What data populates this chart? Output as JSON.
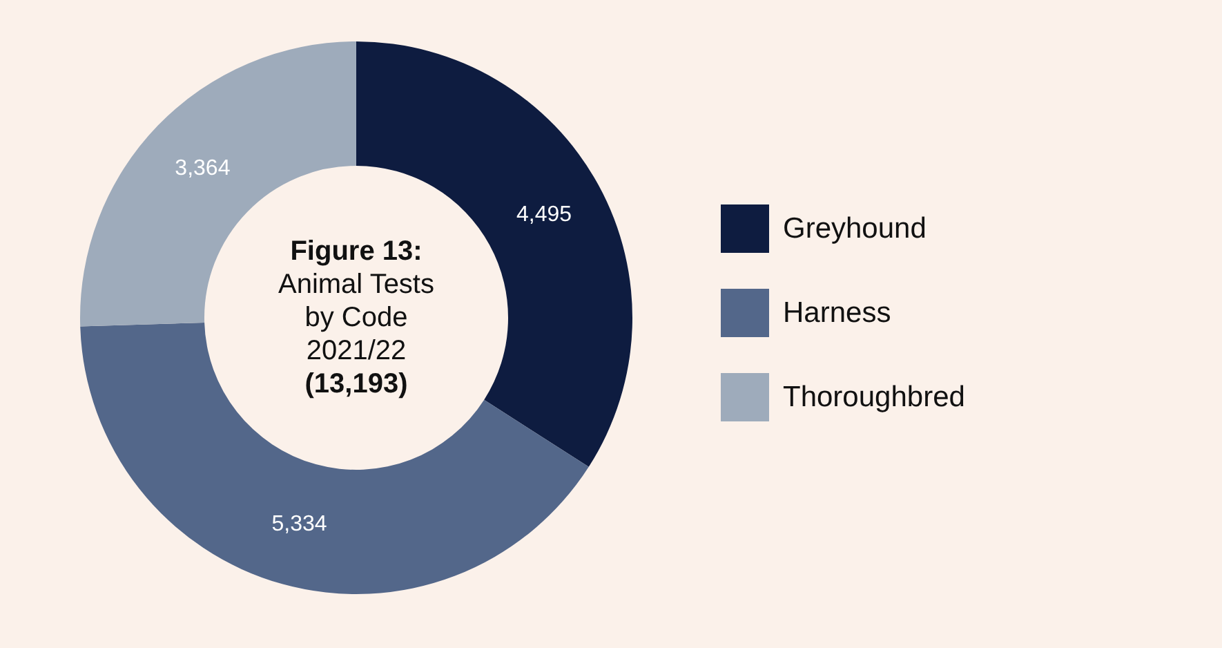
{
  "chart_data": {
    "type": "donut",
    "title": "Figure 13:",
    "subtitle": "Animal Tests by Code 2021/22",
    "annotations": [
      "(13,193)"
    ],
    "categories": [
      "Greyhound",
      "Harness",
      "Thoroughbred"
    ],
    "values": [
      4495,
      5334,
      3364
    ],
    "colors": [
      "#0e1c40",
      "#53678a",
      "#9eabbb"
    ],
    "value_labels": [
      "4,495",
      "5,334",
      "3,364"
    ],
    "legend": "right"
  }
}
